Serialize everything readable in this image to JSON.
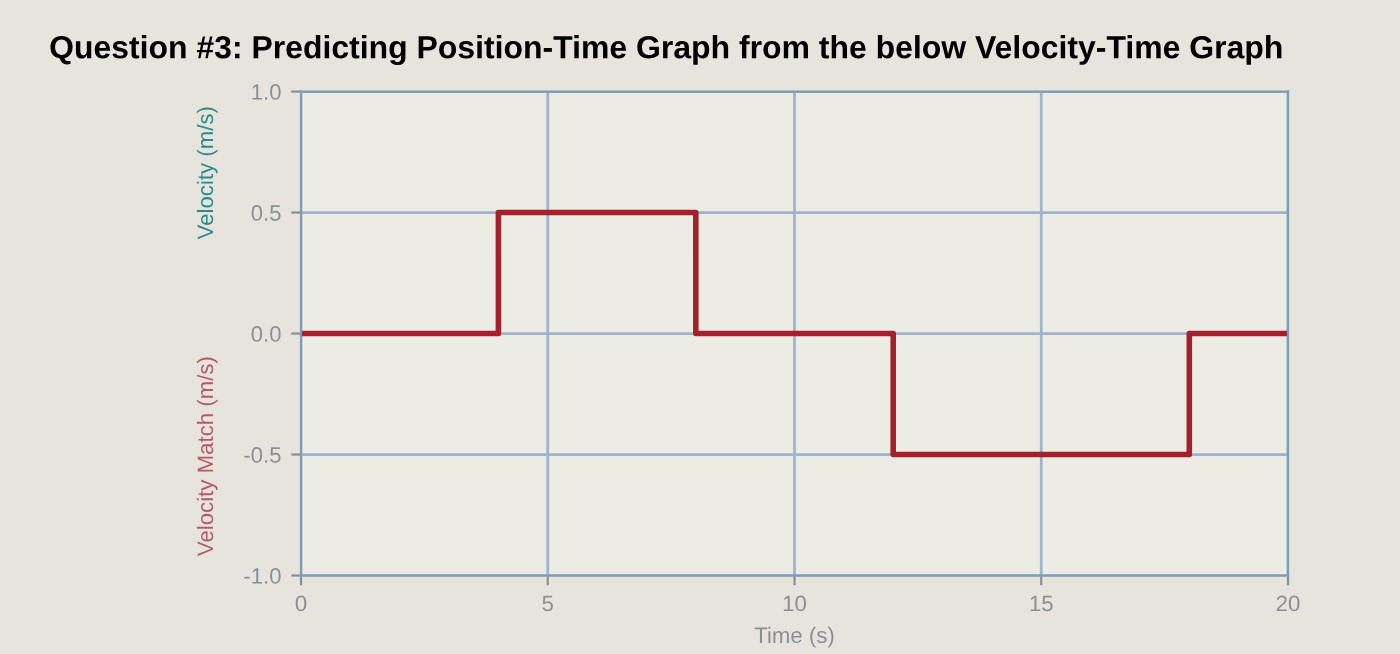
{
  "chart_data": {
    "type": "step",
    "title": "Question #3: Predicting Position-Time Graph from the below Velocity-Time Graph",
    "xlabel": "Time (s)",
    "ylabel": "Velocity (m/s)",
    "x": [
      0,
      4,
      8,
      12,
      18,
      20
    ],
    "series": [
      {
        "name": "Velocity Match (m/s)",
        "color": "#a3202c",
        "values": [
          0,
          0.5,
          0,
          -0.5,
          0,
          0
        ]
      }
    ],
    "xlim": [
      0,
      20
    ],
    "xticks": [
      0,
      5,
      10,
      15,
      20
    ],
    "ylim": [
      -1,
      1
    ],
    "yticks": [
      {
        "value": -1,
        "label": "-1.0"
      },
      {
        "value": -0.5,
        "label": "-0.5"
      },
      {
        "value": 0,
        "label": "0.0"
      },
      {
        "value": 0.5,
        "label": "0.5"
      },
      {
        "value": 1,
        "label": "1.0"
      }
    ],
    "grid": true,
    "legend": "left",
    "marker": "none",
    "line_style": "solid"
  }
}
